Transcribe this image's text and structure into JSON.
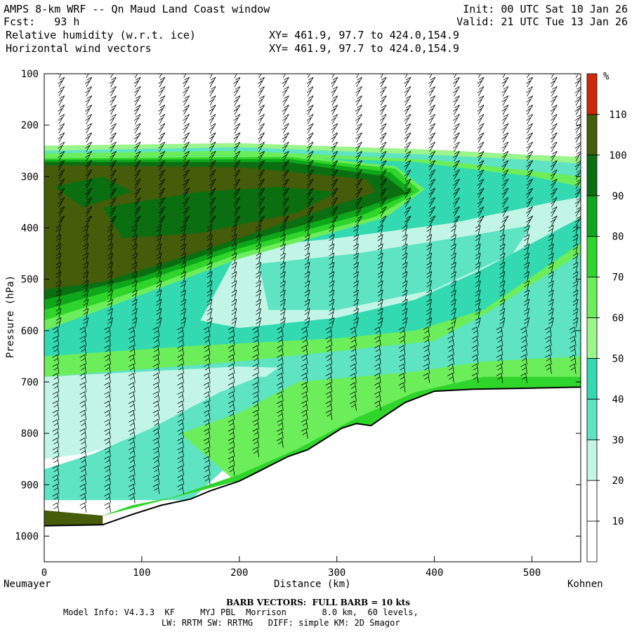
{
  "header": {
    "title": "AMPS 8-km WRF -- Qn Maud Land Coast window",
    "fcst": "Fcst:   93 h",
    "field1": "Relative humidity (w.r.t. ice)",
    "field2": "Horizontal wind vectors",
    "xy1": "XY= 461.9, 97.7 to 424.0,154.9",
    "xy2": "XY= 461.9, 97.7 to 424.0,154.9",
    "init": "Init: 00 UTC Sat 10 Jan 26",
    "valid": "Valid: 21 UTC Tue 13 Jan 26"
  },
  "chart_data": {
    "type": "cross-section",
    "title": "Relative humidity (w.r.t. ice) and horizontal wind vectors",
    "xlabel": "Distance (km)",
    "ylabel": "Pressure (hPa)",
    "xlim": [
      0,
      550
    ],
    "ylim": [
      1050,
      100
    ],
    "x_ticks": [
      "0",
      "100",
      "200",
      "300",
      "400",
      "500"
    ],
    "y_ticks": [
      "100",
      "200",
      "300",
      "400",
      "500",
      "600",
      "700",
      "800",
      "900",
      "1000"
    ],
    "left_endpoint": "Neumayer",
    "right_endpoint": "Kohnen",
    "colorbar": {
      "unit": "%",
      "levels": [
        "10",
        "20",
        "30",
        "40",
        "50",
        "60",
        "70",
        "80",
        "90",
        "100",
        "110"
      ],
      "colors": [
        "#ffffff",
        "#ffffff",
        "#c2f5e6",
        "#5ee3c3",
        "#33d9b0",
        "#9af58a",
        "#6ced5a",
        "#2fd52a",
        "#0ea61a",
        "#0b6e10",
        "#455c0a",
        "#d02808"
      ]
    },
    "terrain_surface": [
      [
        0,
        980
      ],
      [
        60,
        978
      ],
      [
        90,
        958
      ],
      [
        120,
        940
      ],
      [
        150,
        928
      ],
      [
        170,
        912
      ],
      [
        200,
        893
      ],
      [
        220,
        874
      ],
      [
        250,
        845
      ],
      [
        270,
        832
      ],
      [
        290,
        808
      ],
      [
        305,
        790
      ],
      [
        320,
        781
      ],
      [
        335,
        785
      ],
      [
        350,
        765
      ],
      [
        370,
        740
      ],
      [
        400,
        718
      ],
      [
        440,
        714
      ],
      [
        500,
        712
      ],
      [
        550,
        710
      ]
    ],
    "moist_layer": {
      "rh_max_percent": 100,
      "top_hPa_at_0km": 270,
      "base_hPa_at_0km": 540,
      "tip_km": 380,
      "tip_hPa": 330
    },
    "barb_columns_km": [
      15,
      43,
      68,
      93,
      118,
      143,
      170,
      195,
      220,
      245,
      270,
      295,
      320,
      345,
      370,
      395,
      420,
      445,
      470,
      495,
      520,
      545
    ],
    "barb_note": "BARB VECTORS:  FULL BARB = 10 kts"
  },
  "footer": {
    "model_info": "Model Info: V4.3.3  KF     MYJ PBL  Morrison       8.0 km,  60 levels,",
    "model_info2": "LW: RRTM SW: RRTMG   DIFF: simple KM: 2D Smagor"
  }
}
